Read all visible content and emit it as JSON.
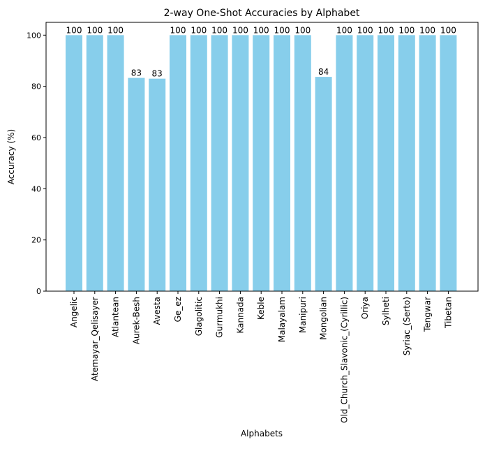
{
  "chart_data": {
    "type": "bar",
    "title": "2-way One-Shot Accuracies by Alphabet",
    "xlabel": "Alphabets",
    "ylabel": "Accuracy (%)",
    "categories": [
      "Angelic",
      "Atemayar_Qelisayer",
      "Atlantean",
      "Aurek-Besh",
      "Avesta",
      "Ge_ez",
      "Glagolitic",
      "Gurmukhi",
      "Kannada",
      "Keble",
      "Malayalam",
      "Manipuri",
      "Mongolian",
      "Old_Church_Slavonic_(Cyrillic)",
      "Oriya",
      "Sylheti",
      "Syriac_(Serto)",
      "Tengwar",
      "Tibetan"
    ],
    "values": [
      100,
      100,
      100,
      83.3,
      83.0,
      100,
      100,
      100,
      100,
      100,
      100,
      100,
      83.7,
      100,
      100,
      100,
      100,
      100,
      100
    ],
    "data_labels": [
      "100",
      "100",
      "100",
      "83",
      "83",
      "100",
      "100",
      "100",
      "100",
      "100",
      "100",
      "100",
      "84",
      "100",
      "100",
      "100",
      "100",
      "100",
      "100"
    ],
    "ylim": [
      0,
      105
    ],
    "yticks": [
      0,
      20,
      40,
      60,
      80,
      100
    ],
    "grid": false,
    "bar_color": "#87ceeb"
  }
}
